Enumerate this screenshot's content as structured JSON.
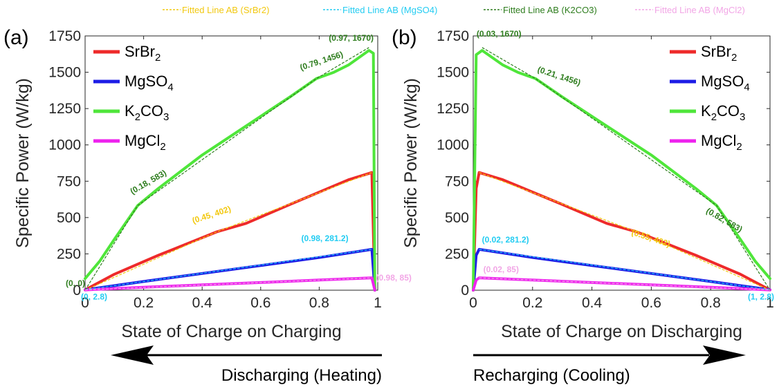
{
  "top_legend": [
    {
      "label": "Fitted Line AB (SrBr2)",
      "color": "#f2c80f"
    },
    {
      "label": "Fitted Line AB (MgSO4)",
      "color": "#22ccf2"
    },
    {
      "label": "Fitted Line AB (K2CO3)",
      "color": "#2e7d1e"
    },
    {
      "label": "Fitted Line AB (MgCl2)",
      "color": "#f2a6e6"
    }
  ],
  "series_legend": [
    {
      "base": "SrBr",
      "sub": "2",
      "tail": "",
      "color": "#ee2a2a"
    },
    {
      "base": "MgSO",
      "sub": "4",
      "tail": "",
      "color": "#1c1ce6"
    },
    {
      "base": "K",
      "sub": "2",
      "tail": "CO",
      "sub2": "3",
      "color": "#4fe63a"
    },
    {
      "base": "MgCl",
      "sub": "2",
      "tail": "",
      "color": "#ee22ee"
    }
  ],
  "arrows": {
    "left_label": "Discharging (Heating)",
    "right_label": "Recharging (Cooling)"
  },
  "chart_data": [
    {
      "type": "line",
      "panel_label": "(a)",
      "xlabel": "State of Charge on Charging",
      "ylabel": "Specific Power (W/kg)",
      "xlim": [
        0,
        1
      ],
      "ylim": [
        0,
        1750
      ],
      "xticks": [
        "0",
        "0.2",
        "0.4",
        "0.6",
        "0.8",
        "1"
      ],
      "yticks": [
        "0",
        "250",
        "500",
        "750",
        "1000",
        "1250",
        "1500",
        "1750"
      ],
      "grid": false,
      "legend_position": "top-left",
      "series": [
        {
          "name": "SrBr2",
          "color": "#ee2a2a",
          "x": [
            0,
            0.1,
            0.25,
            0.45,
            0.55,
            0.7,
            0.9,
            0.98,
            0.99
          ],
          "y": [
            2,
            110,
            240,
            402,
            460,
            590,
            760,
            810,
            0
          ]
        },
        {
          "name": "MgSO4",
          "color": "#1c1ce6",
          "x": [
            0,
            0.2,
            0.4,
            0.6,
            0.8,
            0.98,
            0.99
          ],
          "y": [
            2.8,
            60,
            115,
            170,
            225,
            281.2,
            0
          ]
        },
        {
          "name": "K2CO3",
          "color": "#4fe63a",
          "x": [
            0,
            0.05,
            0.1,
            0.18,
            0.25,
            0.4,
            0.55,
            0.7,
            0.79,
            0.85,
            0.9,
            0.97,
            0.985,
            0.99
          ],
          "y": [
            80,
            200,
            350,
            583,
            700,
            930,
            1130,
            1330,
            1456,
            1500,
            1550,
            1650,
            1630,
            0
          ]
        },
        {
          "name": "MgCl2",
          "color": "#ee22ee",
          "x": [
            0,
            0.2,
            0.4,
            0.6,
            0.8,
            0.98,
            0.99
          ],
          "y": [
            2,
            20,
            37,
            53,
            70,
            85,
            0
          ]
        }
      ],
      "fitted_lines": [
        {
          "name": "Fitted Line AB (SrBr2)",
          "color": "#f2c80f",
          "x": [
            0,
            0.45,
            0.98
          ],
          "y": [
            0,
            402,
            810
          ]
        },
        {
          "name": "Fitted Line AB (MgSO4)",
          "color": "#22ccf2",
          "x": [
            0,
            0.98
          ],
          "y": [
            2.8,
            281.2
          ]
        },
        {
          "name": "Fitted Line AB (K2CO3)",
          "color": "#2e7d1e",
          "x": [
            0,
            0.18,
            0.79,
            0.97
          ],
          "y": [
            0,
            583,
            1456,
            1670
          ]
        },
        {
          "name": "Fitted Line AB (MgCl2)",
          "color": "#f2a6e6",
          "x": [
            0,
            0.98
          ],
          "y": [
            2,
            85
          ]
        }
      ],
      "annotations": [
        {
          "text": "(0, 0)",
          "x": 0,
          "y": 0,
          "color": "#2e7d1e"
        },
        {
          "text": "(0.18, 583)",
          "x": 0.18,
          "y": 583,
          "color": "#2e7d1e",
          "rot": -30
        },
        {
          "text": "(0.79, 1456)",
          "x": 0.79,
          "y": 1456,
          "color": "#2e7d1e",
          "rot": -18
        },
        {
          "text": "(0.97, 1670)",
          "x": 0.97,
          "y": 1670,
          "color": "#2e7d1e"
        },
        {
          "text": "(0.45, 402)",
          "x": 0.45,
          "y": 402,
          "color": "#f2c80f",
          "rot": -18
        },
        {
          "text": "(0.98, 281.2)",
          "x": 0.98,
          "y": 281.2,
          "color": "#22ccf2"
        },
        {
          "text": "(0.98, 85)",
          "x": 0.98,
          "y": 85,
          "color": "#f2a6e6"
        },
        {
          "text": "(0, 2.8)",
          "x": 0,
          "y": 2.8,
          "color": "#22ccf2"
        }
      ]
    },
    {
      "type": "line",
      "panel_label": "(b)",
      "xlabel": "State of Charge on Discharging",
      "ylabel": "Specific Power (W/kg)",
      "xlim": [
        0,
        1
      ],
      "ylim": [
        0,
        1750
      ],
      "xticks": [
        "0",
        "0.2",
        "0.4",
        "0.6",
        "0.8",
        "1"
      ],
      "yticks": [
        "0",
        "250",
        "500",
        "750",
        "1000",
        "1250",
        "1500",
        "1750"
      ],
      "grid": false,
      "legend_position": "top-right",
      "series": [
        {
          "name": "SrBr2",
          "color": "#ee2a2a",
          "x": [
            0,
            0.01,
            0.02,
            0.1,
            0.3,
            0.45,
            0.55,
            0.75,
            0.9,
            1
          ],
          "y": [
            0,
            700,
            810,
            760,
            590,
            460,
            402,
            240,
            110,
            2
          ]
        },
        {
          "name": "MgSO4",
          "color": "#1c1ce6",
          "x": [
            0,
            0.01,
            0.02,
            0.2,
            0.4,
            0.6,
            0.8,
            1
          ],
          "y": [
            0,
            240,
            281.2,
            225,
            170,
            115,
            60,
            2.8
          ]
        },
        {
          "name": "K2CO3",
          "color": "#4fe63a",
          "x": [
            0,
            0.01,
            0.03,
            0.1,
            0.15,
            0.21,
            0.3,
            0.45,
            0.6,
            0.75,
            0.82,
            0.9,
            0.95,
            1
          ],
          "y": [
            0,
            1620,
            1650,
            1550,
            1500,
            1456,
            1330,
            1130,
            930,
            700,
            583,
            350,
            200,
            80
          ]
        },
        {
          "name": "MgCl2",
          "color": "#ee22ee",
          "x": [
            0,
            0.01,
            0.02,
            0.2,
            0.4,
            0.6,
            0.8,
            1
          ],
          "y": [
            0,
            70,
            85,
            70,
            53,
            37,
            20,
            2
          ]
        }
      ],
      "fitted_lines": [
        {
          "name": "Fitted Line AB (SrBr2)",
          "color": "#f2c80f",
          "x": [
            0.02,
            0.55,
            1
          ],
          "y": [
            810,
            402,
            0
          ]
        },
        {
          "name": "Fitted Line AB (MgSO4)",
          "color": "#22ccf2",
          "x": [
            0.02,
            1
          ],
          "y": [
            281.2,
            2.8
          ]
        },
        {
          "name": "Fitted Line AB (K2CO3)",
          "color": "#2e7d1e",
          "x": [
            0.03,
            0.21,
            0.82,
            1
          ],
          "y": [
            1670,
            1456,
            583,
            0
          ]
        },
        {
          "name": "Fitted Line AB (MgCl2)",
          "color": "#f2a6e6",
          "x": [
            0.02,
            1
          ],
          "y": [
            85,
            2
          ]
        }
      ],
      "annotations": [
        {
          "text": "(0.03, 1670)",
          "x": 0.03,
          "y": 1670,
          "color": "#2e7d1e"
        },
        {
          "text": "(0.21, 1456)",
          "x": 0.21,
          "y": 1456,
          "color": "#2e7d1e",
          "rot": 18
        },
        {
          "text": "(0.82, 583)",
          "x": 0.82,
          "y": 583,
          "color": "#2e7d1e",
          "rot": 30
        },
        {
          "text": "(0.55, 402)",
          "x": 0.55,
          "y": 402,
          "color": "#f2c80f",
          "rot": 18
        },
        {
          "text": "(0.02, 281.2)",
          "x": 0.02,
          "y": 281.2,
          "color": "#22ccf2"
        },
        {
          "text": "(0.02, 85)",
          "x": 0.02,
          "y": 85,
          "color": "#f2a6e6"
        },
        {
          "text": "(1, 2.8)",
          "x": 1,
          "y": 2.8,
          "color": "#22ccf2"
        }
      ]
    }
  ]
}
